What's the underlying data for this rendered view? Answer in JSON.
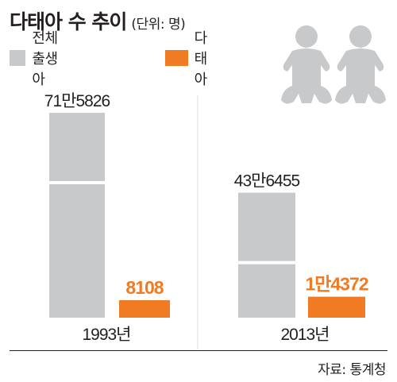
{
  "title": "다태아 수 추이",
  "unit": "(단위: 명)",
  "source": "자료: 통계청",
  "colors": {
    "total": "#c8c9cb",
    "multiple": "#f07b22",
    "text": "#231f20",
    "icon": "#c8c9cb"
  },
  "icon": "twin-babies-icon",
  "chart_data": {
    "type": "bar",
    "categories": [
      "1993년",
      "2013년"
    ],
    "series": [
      {
        "name": "전체 출생아",
        "values": [
          715826,
          436455
        ],
        "labels": [
          "71만5826",
          "43만6455"
        ],
        "color": "#c8c9cb"
      },
      {
        "name": "다태아",
        "values": [
          8108,
          14372
        ],
        "labels": [
          "8108",
          "1만4372"
        ],
        "color": "#f07b22"
      }
    ],
    "legend": "top-left",
    "grid": false
  }
}
